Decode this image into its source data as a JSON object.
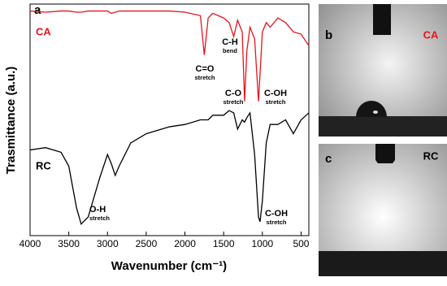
{
  "chart_data": {
    "type": "line",
    "panel_label": "a",
    "x_label": "Wavenumber (cm⁻¹)",
    "y_label": "Trasmittance (a.u.)",
    "xlim": [
      4000,
      400
    ],
    "ylim": [
      0,
      100
    ],
    "xticks": [
      4000,
      3500,
      3000,
      2500,
      2000,
      1500,
      1000,
      500
    ],
    "x": [
      4000,
      3800,
      3600,
      3500,
      3400,
      3340,
      3250,
      3100,
      3000,
      2950,
      2900,
      2850,
      2700,
      2500,
      2200,
      2000,
      1800,
      1750,
      1700,
      1640,
      1500,
      1430,
      1370,
      1320,
      1260,
      1230,
      1200,
      1160,
      1100,
      1050,
      1030,
      1000,
      950,
      900,
      800,
      700,
      600,
      500,
      400
    ],
    "series": [
      {
        "name": "CA",
        "color": "#e8141b",
        "values": [
          97,
          96.5,
          97,
          97,
          96.5,
          96.5,
          97,
          97,
          97,
          96,
          96.5,
          97,
          97,
          97,
          97,
          96.5,
          95,
          78,
          94,
          96,
          94,
          92,
          86,
          93,
          88,
          58,
          80,
          90,
          85,
          58,
          70,
          88,
          92,
          90,
          94,
          92,
          88,
          87,
          82
        ]
      },
      {
        "name": "RC",
        "color": "#000000",
        "values": [
          37,
          38,
          36,
          30,
          12,
          5,
          8,
          25,
          35,
          31,
          26,
          30,
          40,
          44,
          47,
          48,
          50,
          50,
          50,
          52,
          52,
          54,
          53,
          46,
          50,
          49,
          51,
          53,
          35,
          8,
          6,
          15,
          40,
          48,
          48,
          50,
          44,
          50,
          53
        ]
      }
    ],
    "annotations": [
      {
        "label": "C=O",
        "note": "stretch"
      },
      {
        "label": "C-H",
        "note": "bend"
      },
      {
        "label": "C-O",
        "note": "stretch"
      },
      {
        "label": "C-OH",
        "note": "stretch"
      },
      {
        "label": "O-H",
        "note": "stretch"
      },
      {
        "label": "C-OH",
        "note": "stretch"
      }
    ]
  },
  "panels": [
    {
      "letter": "b",
      "label": "CA"
    },
    {
      "letter": "c",
      "label": "RC"
    }
  ]
}
